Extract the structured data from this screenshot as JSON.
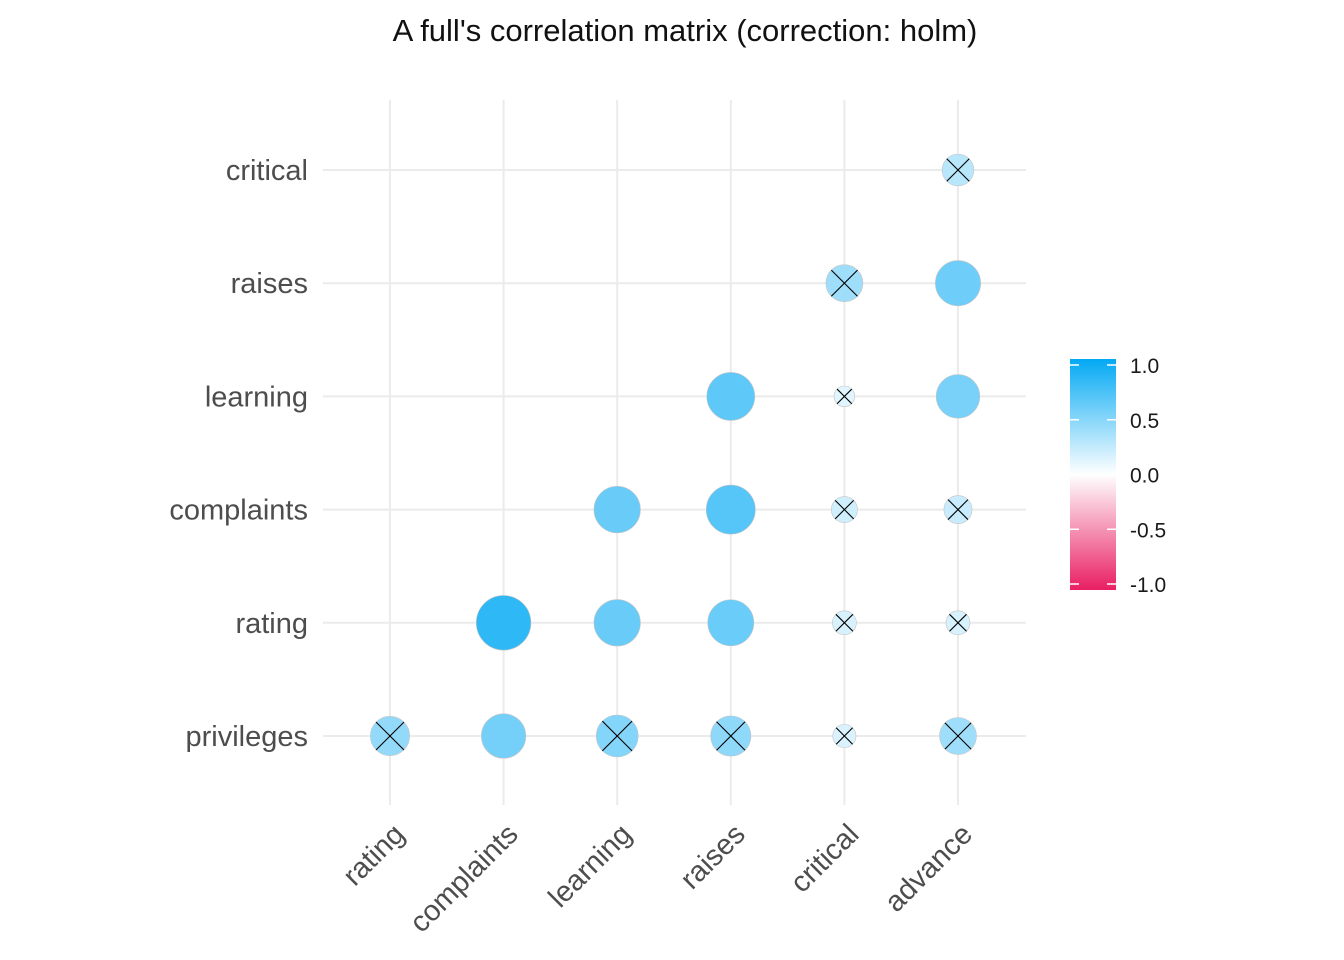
{
  "chart_data": {
    "type": "scatter",
    "chart_kind": "correlation-matrix",
    "title": "A full's correlation matrix (correction: holm)",
    "x_categories": [
      "rating",
      "complaints",
      "learning",
      "raises",
      "critical",
      "advance"
    ],
    "y_categories": [
      "privileges",
      "rating",
      "complaints",
      "learning",
      "raises",
      "critical"
    ],
    "cells": [
      {
        "x": "rating",
        "y": "privileges",
        "r": 0.43,
        "significant": false
      },
      {
        "x": "complaints",
        "y": "privileges",
        "r": 0.55,
        "significant": true
      },
      {
        "x": "learning",
        "y": "privileges",
        "r": 0.49,
        "significant": false
      },
      {
        "x": "raises",
        "y": "privileges",
        "r": 0.45,
        "significant": false
      },
      {
        "x": "critical",
        "y": "privileges",
        "r": 0.15,
        "significant": false
      },
      {
        "x": "advance",
        "y": "privileges",
        "r": 0.38,
        "significant": false
      },
      {
        "x": "complaints",
        "y": "rating",
        "r": 0.83,
        "significant": true
      },
      {
        "x": "learning",
        "y": "rating",
        "r": 0.6,
        "significant": true
      },
      {
        "x": "raises",
        "y": "rating",
        "r": 0.59,
        "significant": true
      },
      {
        "x": "critical",
        "y": "rating",
        "r": 0.16,
        "significant": false
      },
      {
        "x": "advance",
        "y": "rating",
        "r": 0.16,
        "significant": false
      },
      {
        "x": "learning",
        "y": "complaints",
        "r": 0.6,
        "significant": true
      },
      {
        "x": "raises",
        "y": "complaints",
        "r": 0.67,
        "significant": true
      },
      {
        "x": "critical",
        "y": "complaints",
        "r": 0.19,
        "significant": false
      },
      {
        "x": "advance",
        "y": "complaints",
        "r": 0.22,
        "significant": false
      },
      {
        "x": "raises",
        "y": "learning",
        "r": 0.64,
        "significant": true
      },
      {
        "x": "critical",
        "y": "learning",
        "r": 0.12,
        "significant": false
      },
      {
        "x": "advance",
        "y": "learning",
        "r": 0.53,
        "significant": true
      },
      {
        "x": "critical",
        "y": "raises",
        "r": 0.38,
        "significant": false
      },
      {
        "x": "advance",
        "y": "raises",
        "r": 0.57,
        "significant": true
      },
      {
        "x": "advance",
        "y": "critical",
        "r": 0.28,
        "significant": false
      }
    ],
    "legend": {
      "position": "right",
      "ticks": [
        "1.0",
        "0.5",
        "0.0",
        "-0.5",
        "-1.0"
      ],
      "range": [
        -1,
        1
      ],
      "colors": {
        "low": "#E91E63",
        "mid": "#FFFFFF",
        "high": "#03A9F4"
      }
    },
    "grid": true
  }
}
